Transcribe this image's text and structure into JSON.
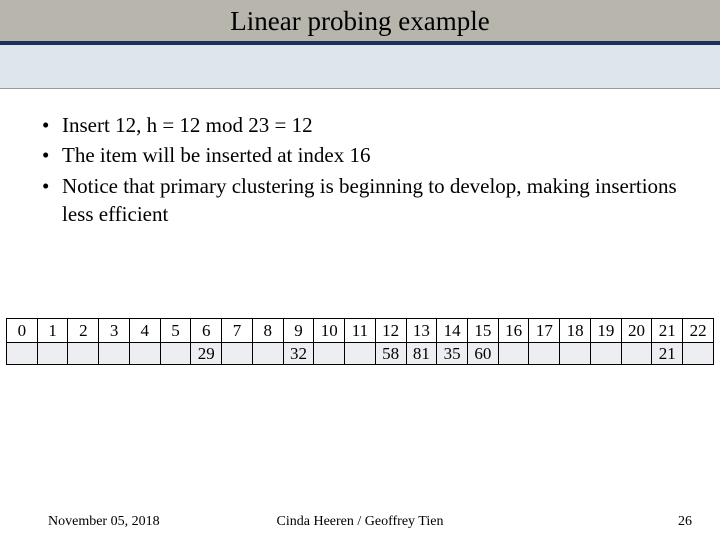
{
  "slide": {
    "title": "Linear probing example",
    "bullets": [
      "Insert 12, h = 12 mod 23 = 12",
      "The item will be inserted at index 16",
      "Notice that primary clustering is beginning to develop, making insertions less efficient"
    ]
  },
  "hash_table": {
    "num_slots": 23,
    "indices": [
      "0",
      "1",
      "2",
      "3",
      "4",
      "5",
      "6",
      "7",
      "8",
      "9",
      "10",
      "11",
      "12",
      "13",
      "14",
      "15",
      "16",
      "17",
      "18",
      "19",
      "20",
      "21",
      "22"
    ],
    "values": [
      "",
      "",
      "",
      "",
      "",
      "",
      "29",
      "",
      "",
      "32",
      "",
      "",
      "58",
      "81",
      "35",
      "60",
      "",
      "",
      "",
      "",
      "",
      "21",
      ""
    ],
    "index_row_bg": "#ffffff",
    "value_row_bg": "#eceef2",
    "border_color": "#000000",
    "font_size": 17
  },
  "colors": {
    "header_bg": "#b8b5ad",
    "header_border": "#1a2f5a",
    "subband_bg": "#dce6ec"
  },
  "footer": {
    "date": "November 05, 2018",
    "authors": "Cinda Heeren / Geoffrey Tien",
    "page": "26"
  }
}
